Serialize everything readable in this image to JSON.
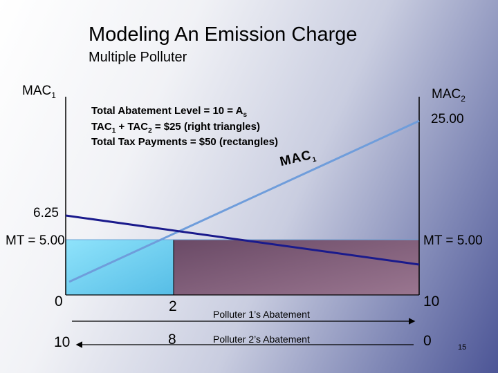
{
  "title": "Modeling An Emission Charge",
  "subtitle": "Multiple Polluter",
  "axes": {
    "left_label": "MAC",
    "left_label_sub": "1",
    "right_label": "MAC",
    "right_label_sub": "2"
  },
  "info_lines": {
    "line1_main": "Total Abatement Level = 10 = A",
    "line1_sub": "s",
    "line2_a": "TAC",
    "line2_a_sub": "1",
    "line2_b": " + TAC",
    "line2_b_sub": "2",
    "line2_c": " = $25 (right triangles)",
    "line3": "Total Tax Payments = $50 (rectangles)"
  },
  "curve_labels": {
    "mac1": "MAC",
    "mac1_sub": "1"
  },
  "values": {
    "mac2_intercept": "25.00",
    "mac1_intercept": "6.25",
    "mt_left": "MT = 5.00",
    "mt_right": "MT = 5.00"
  },
  "x_axis": {
    "p1_start": "0",
    "p1_mid": "2",
    "p1_end": "10",
    "p1_label": "Polluter 1’s Abatement",
    "p2_start": "10",
    "p2_mid": "8",
    "p2_end": "0",
    "p2_label": "Polluter 2’s Abatement"
  },
  "slide_number": "15",
  "colors": {
    "mac1_line": "#1a1a8c",
    "mac2_line": "#6f9ddb",
    "polluter1_rect": "#6fd0f0",
    "polluter2_rect": "#7a5873"
  }
}
